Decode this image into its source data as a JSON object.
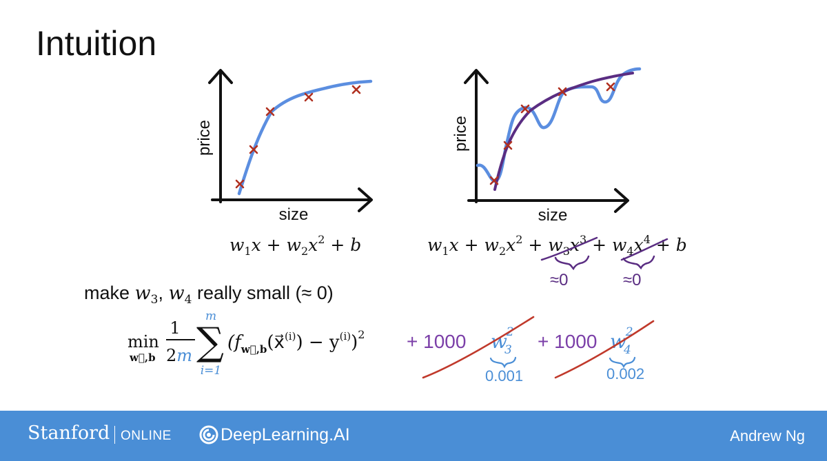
{
  "title": "Intuition",
  "left_plot": {
    "xlabel": "size",
    "ylabel": "price",
    "formula": {
      "w1": "w",
      "s1": "1",
      "x1": "x",
      "plus1": " + ",
      "w2": "w",
      "s2": "2",
      "x2": "x",
      "p2": "2",
      "plus2": " + ",
      "b": "b"
    }
  },
  "right_plot": {
    "xlabel": "size",
    "ylabel": "price",
    "formula": {
      "w1": "w",
      "s1": "1",
      "x1": "x",
      "plus1": " + ",
      "w2": "w",
      "s2": "2",
      "x2": "x",
      "p2": "2",
      "plus3": " + ",
      "w3": "w",
      "s3": "3",
      "x3": "x",
      "p3": "3",
      "plus4": " + ",
      "w4": "w",
      "s4": "4",
      "x4": "x",
      "p4": "4",
      "plus5": " + ",
      "b": "b"
    },
    "annotations": {
      "approx_w3": "≈0",
      "approx_w4": "≈0"
    }
  },
  "make_small": {
    "prefix": "make ",
    "w3": "w",
    "s3": "3",
    "comma": ", ",
    "w4": "w",
    "s4": "4",
    "suffix": " really small (≈ 0)"
  },
  "cost": {
    "min": "min",
    "min_sub": "w⃗,b",
    "frac_num": "1",
    "frac_den_2": "2",
    "frac_den_m": "m",
    "sum_top": "m",
    "sum_bottom": "i=1",
    "sigma": "∑",
    "body": "(f",
    "f_sub": "w⃗,b",
    "arg": "(x⃗",
    "arg_sup": "(i)",
    "minus_y": ") − y",
    "y_sup": "(i)",
    "close": ")",
    "sq": "2",
    "term3": "+ 1000",
    "w3": "w",
    "w3_sub": "3",
    "w3_sup": "2",
    "val3": "0.001",
    "term4": "+ 1000",
    "w4": "w",
    "w4_sub": "4",
    "w4_sup": "2",
    "val4": "0.002"
  },
  "colors": {
    "blue": "#5b8ee0",
    "purple": "#5a2d82",
    "red": "#c0392b",
    "marker": "#b03020",
    "footer": "#4a8ed6",
    "violet": "#7b3fa8"
  },
  "footer": {
    "stanford": "Stanford",
    "online": "ONLINE",
    "dl": "DeepLearning.AI",
    "author": "Andrew Ng"
  }
}
